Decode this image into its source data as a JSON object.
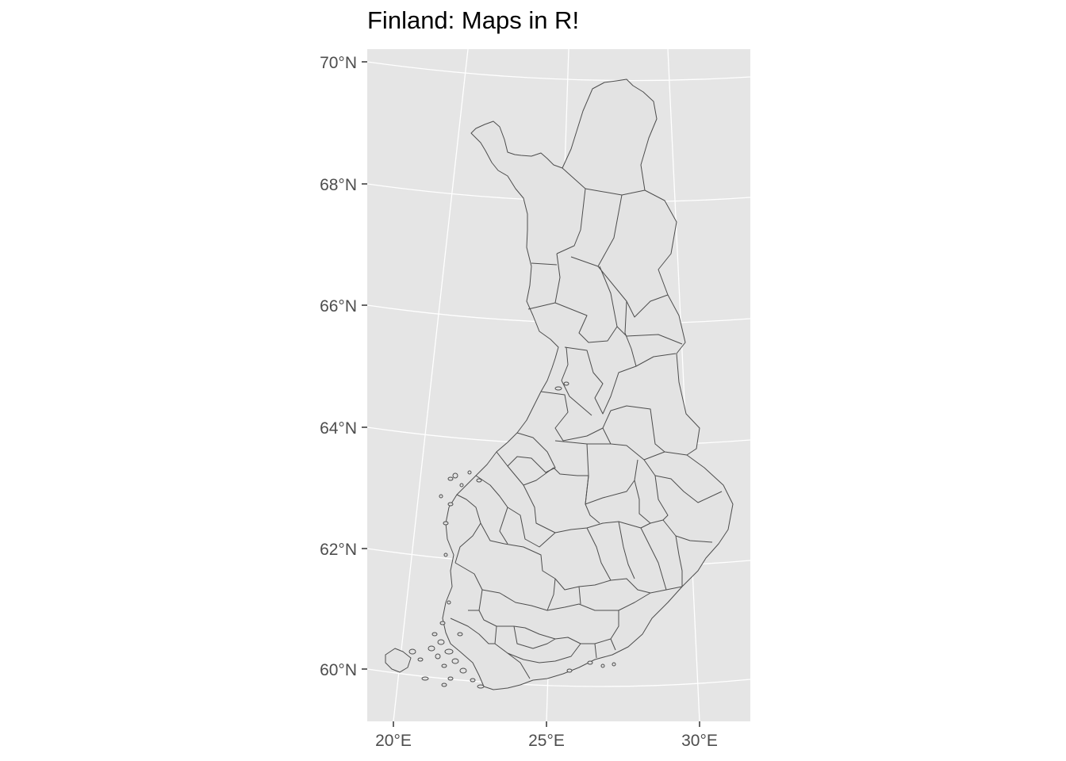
{
  "title": "Finland: Maps in R!",
  "map": {
    "background_color": "#e5e5e5",
    "grid_color": "#ffffff",
    "region_fill": "#e3e3e3",
    "border_color": "#4d4d4d",
    "y_axis_labels": [
      "70°N",
      "68°N",
      "66°N",
      "64°N",
      "62°N",
      "60°N"
    ],
    "x_axis_labels": [
      "20°E",
      "25°E",
      "30°E"
    ]
  }
}
